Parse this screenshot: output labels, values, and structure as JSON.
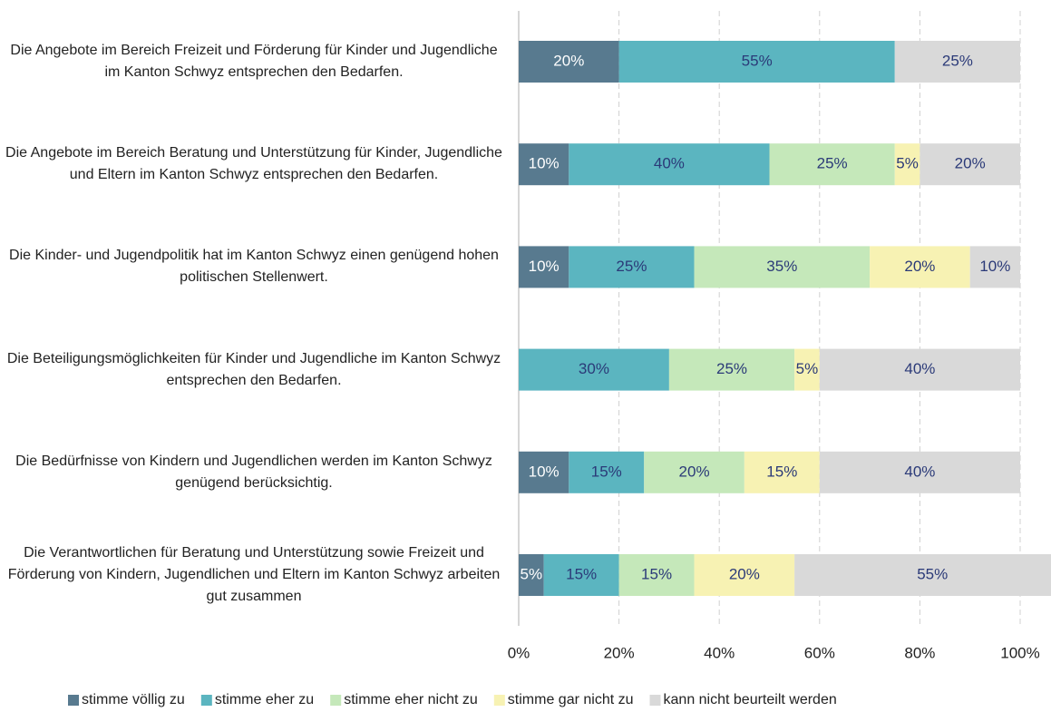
{
  "chart_data": {
    "type": "stacked_barh",
    "categories": [
      "Die Angebote im Bereich Freizeit und Förderung für Kinder und Jugendliche im Kanton Schwyz entsprechen den Bedarfen.",
      "Die Angebote im Bereich Beratung und Unterstützung für Kinder, Jugendliche und Eltern im Kanton Schwyz entsprechen den Bedarfen.",
      "Die Kinder- und Jugendpolitik hat im Kanton Schwyz einen genügend hohen politischen Stellenwert.",
      "Die Beteiligungsmöglichkeiten für Kinder und Jugendliche im Kanton Schwyz entsprechen den Bedarfen.",
      "Die Bedürfnisse von Kindern und Jugendlichen werden im Kanton Schwyz genügend berücksichtig.",
      "Die Verantwortlichen für Beratung und Unterstützung sowie Freizeit und Förderung von Kindern, Jugendlichen und Eltern im Kanton Schwyz arbeiten gut zusammen"
    ],
    "series": [
      {
        "name": "stimme völlig zu",
        "color": "#587a8f",
        "label_color": "#ffffff",
        "values": [
          20,
          10,
          10,
          0,
          10,
          5
        ],
        "value_labels": [
          "20%",
          "10%",
          "10%",
          null,
          "10%",
          "5%"
        ]
      },
      {
        "name": "stimme eher zu",
        "color": "#5bb5c0",
        "label_color": "#2b3a78",
        "values": [
          55,
          40,
          25,
          30,
          15,
          15
        ],
        "value_labels": [
          "55%",
          "40%",
          "25%",
          "30%",
          "15%",
          "15%"
        ]
      },
      {
        "name": "stimme eher nicht zu",
        "color": "#c5e8ba",
        "label_color": "#2b3a78",
        "values": [
          0,
          25,
          35,
          25,
          20,
          15
        ],
        "value_labels": [
          null,
          "25%",
          "35%",
          "25%",
          "20%",
          "15%"
        ]
      },
      {
        "name": "stimme gar nicht zu",
        "color": "#f7f2b3",
        "label_color": "#2b3a78",
        "values": [
          0,
          5,
          20,
          5,
          15,
          20
        ],
        "value_labels": [
          null,
          "5%",
          "20%",
          "5%",
          "15%",
          "20%"
        ]
      },
      {
        "name": "kann nicht beurteilt werden",
        "color": "#d9d9d9",
        "label_color": "#2b3a78",
        "values": [
          25,
          20,
          10,
          40,
          40,
          55
        ],
        "value_labels": [
          "25%",
          "20%",
          "10%",
          "40%",
          "40%",
          "55%"
        ]
      }
    ],
    "xlim": [
      0,
      100
    ],
    "xticks": [
      {
        "value": 0,
        "label": "0%"
      },
      {
        "value": 20,
        "label": "20%"
      },
      {
        "value": 40,
        "label": "40%"
      },
      {
        "value": 60,
        "label": "60%"
      },
      {
        "value": 80,
        "label": "80%"
      },
      {
        "value": 100,
        "label": "100%"
      }
    ],
    "grid": true,
    "legend": "bottom"
  }
}
